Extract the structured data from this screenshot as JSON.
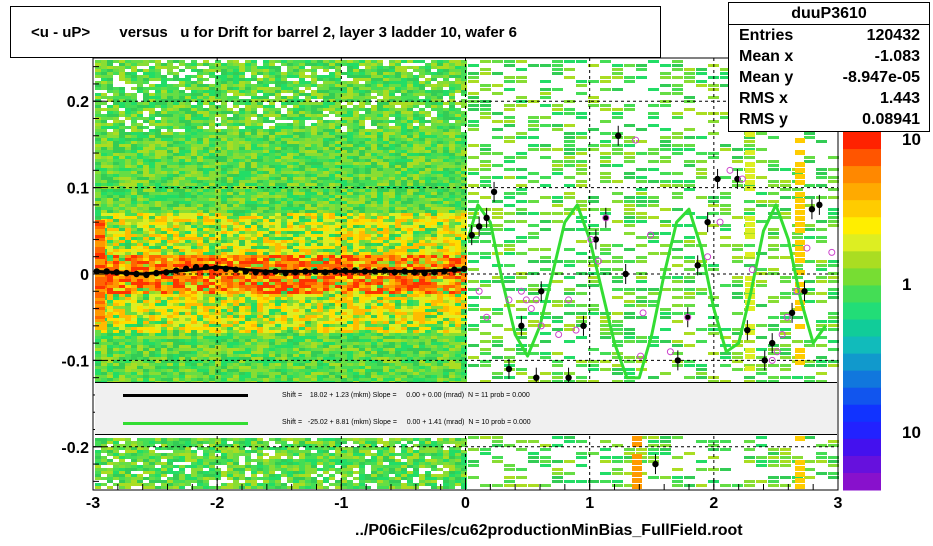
{
  "title": "<u - uP>       versus   u for Drift for barrel 2, layer 3 ladder 10, wafer 6",
  "stats": {
    "name": "duuP3610",
    "rows": [
      {
        "label": "Entries",
        "value": "120432"
      },
      {
        "label": "Mean x",
        "value": "-1.083"
      },
      {
        "label": "Mean y",
        "value": "-8.947e-05"
      },
      {
        "label": "RMS x",
        "value": "1.443"
      },
      {
        "label": "RMS y",
        "value": "0.08941"
      }
    ]
  },
  "legend": [
    {
      "color": "#000000",
      "text": "Shift =    18.02 + 1.23 (mkm) Slope =     0.00 + 0.00 (mrad)  N = 11 prob = 0.000"
    },
    {
      "color": "#33dd33",
      "text": "Shift =   -25.02 + 8.81 (mkm) Slope =     0.00 + 1.41 (mrad)  N = 10 prob = 0.000"
    }
  ],
  "footer": "../P06icFiles/cu62productionMinBias_FullField.root",
  "colors": {
    "fit_black": "#000000",
    "fit_green": "#33dd33",
    "profile_open": "#cc44cc"
  },
  "chart_data": {
    "type": "heatmap",
    "xlim": [
      -3,
      3
    ],
    "ylim": [
      -0.25,
      0.25
    ],
    "x_ticks": [
      -3,
      -2,
      -1,
      0,
      1,
      2,
      3
    ],
    "x_tick_labels": [
      "-3",
      "-2",
      "-1",
      "0",
      "1",
      "2",
      "3"
    ],
    "y_ticks": [
      0.2,
      0.1,
      0,
      -0.1,
      -0.2
    ],
    "y_tick_labels": [
      "0.2",
      "0.1",
      "0",
      "-0.1",
      "-0.2"
    ],
    "colorbar_labels": [
      "10",
      "1",
      "10"
    ],
    "grid": true,
    "series": [
      {
        "marker": "filled-circle",
        "color": "#000000",
        "x": [
          -2.97,
          -2.89,
          -2.81,
          -2.73,
          -2.65,
          -2.57,
          -2.49,
          -2.41,
          -2.33,
          -2.25,
          -2.17,
          -2.09,
          -2.01,
          -1.93,
          -1.85,
          -1.77,
          -1.69,
          -1.61,
          -1.53,
          -1.45,
          -1.37,
          -1.29,
          -1.21,
          -1.13,
          -1.05,
          -0.97,
          -0.89,
          -0.81,
          -0.73,
          -0.65,
          -0.57,
          -0.49,
          -0.41,
          -0.33,
          -0.25,
          -0.17,
          -0.09,
          -0.01,
          0.05,
          0.11,
          0.17,
          0.23,
          0.35,
          0.45,
          0.57,
          0.61,
          0.83,
          0.95,
          1.05,
          1.13,
          1.23,
          1.29,
          1.53,
          1.71,
          1.79,
          1.87,
          1.95,
          2.03,
          2.19,
          2.27,
          2.41,
          2.47,
          2.63,
          2.73,
          2.79,
          2.85
        ],
        "y": [
          0.003,
          0.003,
          0.002,
          0.001,
          0.0,
          -0.001,
          0.001,
          0.002,
          0.004,
          0.006,
          0.008,
          0.008,
          0.007,
          0.006,
          0.005,
          0.003,
          0.002,
          0.002,
          0.003,
          0.001,
          0.002,
          0.003,
          0.003,
          0.002,
          0.003,
          0.004,
          0.004,
          0.003,
          0.003,
          0.004,
          0.002,
          0.003,
          0.002,
          0.001,
          0.002,
          0.003,
          0.005,
          0.006,
          0.045,
          0.055,
          0.065,
          0.095,
          -0.11,
          -0.06,
          -0.12,
          -0.02,
          -0.12,
          -0.06,
          0.04,
          0.065,
          0.16,
          0.0,
          -0.22,
          -0.1,
          -0.05,
          0.01,
          0.06,
          0.11,
          0.11,
          -0.065,
          -0.1,
          -0.08,
          -0.045,
          -0.02,
          0.075,
          0.08
        ]
      },
      {
        "marker": "open-circle",
        "color": "#cc44cc",
        "x": [
          0.11,
          0.17,
          0.35,
          0.45,
          0.49,
          0.53,
          0.57,
          0.61,
          0.75,
          0.83,
          0.89,
          1.01,
          1.07,
          1.13,
          1.37,
          1.41,
          1.43,
          1.49,
          1.65,
          1.79,
          1.95,
          2.05,
          2.13,
          2.23,
          2.31,
          2.47,
          2.51,
          2.55,
          2.59,
          2.67,
          2.75,
          2.95
        ],
        "y": [
          -0.02,
          -0.05,
          -0.03,
          -0.02,
          -0.03,
          -0.04,
          -0.03,
          -0.06,
          -0.07,
          -0.03,
          -0.065,
          0.04,
          0.015,
          0.065,
          0.155,
          -0.095,
          -0.045,
          0.045,
          -0.09,
          -0.05,
          0.02,
          0.06,
          0.12,
          0.11,
          0.005,
          -0.1,
          -0.09,
          -0.07,
          -0.05,
          -0.02,
          0.03,
          0.025
        ]
      }
    ],
    "fits": [
      {
        "color": "#000000",
        "x": [
          -2.97,
          -2.6,
          -2.2,
          -2.0,
          -1.6,
          -1.2,
          -0.8,
          -0.4,
          0.0
        ],
        "y": [
          0.003,
          0.0,
          0.005,
          0.008,
          0.003,
          0.003,
          0.003,
          0.003,
          0.005
        ]
      },
      {
        "color": "#33dd33",
        "x": [
          0.02,
          0.1,
          0.2,
          0.3,
          0.4,
          0.5,
          0.6,
          0.7,
          0.8,
          0.9,
          1.0,
          1.1,
          1.2,
          1.3,
          1.4,
          1.5,
          1.6,
          1.7,
          1.8,
          1.9,
          2.0,
          2.1,
          2.2,
          2.3,
          2.4,
          2.5,
          2.6,
          2.7,
          2.8,
          2.9
        ],
        "y": [
          0.04,
          0.08,
          0.06,
          -0.01,
          -0.07,
          -0.095,
          -0.06,
          0.0,
          0.06,
          0.08,
          0.04,
          -0.02,
          -0.08,
          -0.12,
          -0.12,
          -0.07,
          0.0,
          0.06,
          0.075,
          0.03,
          -0.04,
          -0.09,
          -0.08,
          -0.02,
          0.05,
          0.08,
          0.04,
          -0.03,
          -0.08,
          -0.06
        ]
      }
    ]
  }
}
